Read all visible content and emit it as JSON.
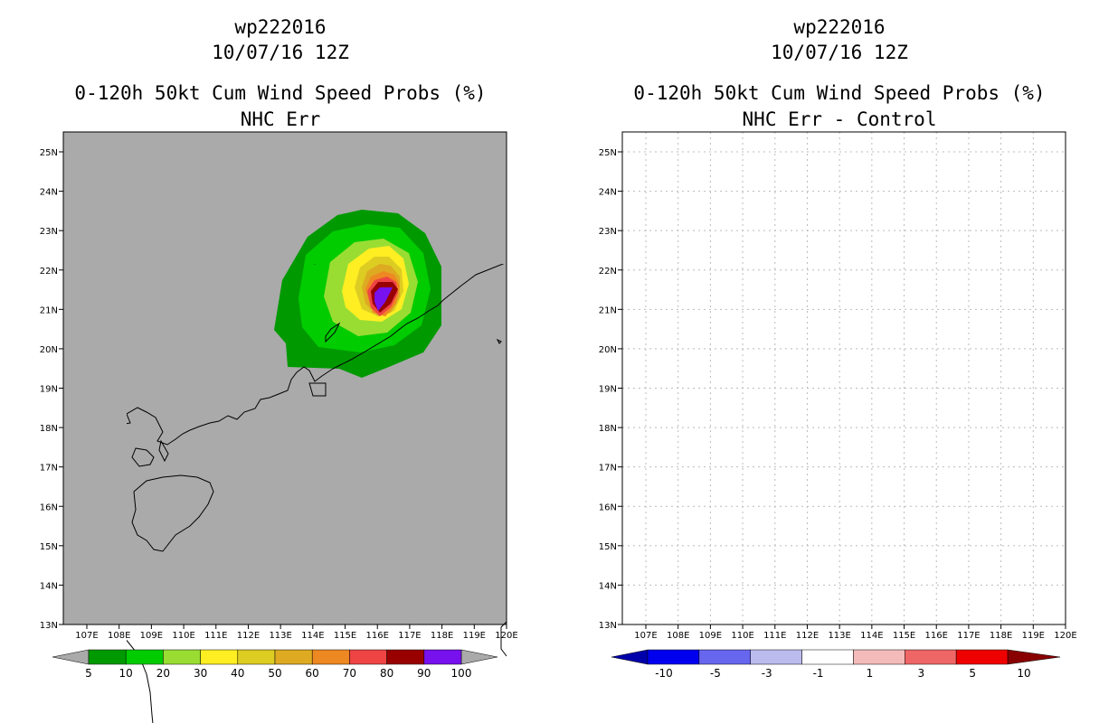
{
  "left_panel": {
    "storm_id": "wp222016",
    "datetime": "10/07/16 12Z",
    "product": "0-120h 50kt Cum Wind Speed Probs (%)",
    "subtitle": "NHC Err",
    "colorbar": {
      "colors": [
        "#009900",
        "#00cc00",
        "#99dd33",
        "#ffee22",
        "#ddcc22",
        "#ddaa22",
        "#ee8822",
        "#ee4444",
        "#990000",
        "#7711ee"
      ],
      "labels": [
        "5",
        "10",
        "20",
        "30",
        "40",
        "50",
        "60",
        "70",
        "80",
        "90",
        "100"
      ]
    }
  },
  "right_panel": {
    "storm_id": "wp222016",
    "datetime": "10/07/16 12Z",
    "product": "0-120h 50kt Cum Wind Speed Probs (%)",
    "subtitle": "NHC Err - Control",
    "colorbar": {
      "colors": [
        "#0000aa",
        "#0000ee",
        "#6666ee",
        "#bbbbee",
        "#ffffff",
        "#f4bbbb",
        "#ee6666",
        "#ee0000",
        "#880000"
      ],
      "labels": [
        "-10",
        "-5",
        "-3",
        "-1",
        "1",
        "3",
        "5",
        "10"
      ]
    }
  },
  "axes": {
    "lat_labels": [
      "25N",
      "24N",
      "23N",
      "22N",
      "21N",
      "20N",
      "19N",
      "18N",
      "17N",
      "16N",
      "15N",
      "14N",
      "13N"
    ],
    "lon_labels": [
      "107E",
      "108E",
      "109E",
      "110E",
      "111E",
      "112E",
      "113E",
      "114E",
      "115E",
      "116E",
      "117E",
      "118E",
      "119E",
      "120E"
    ]
  },
  "colors": {
    "ocean_left": "#aaaaaa",
    "ocean_right": "#ffffff",
    "coast": "#000000"
  }
}
